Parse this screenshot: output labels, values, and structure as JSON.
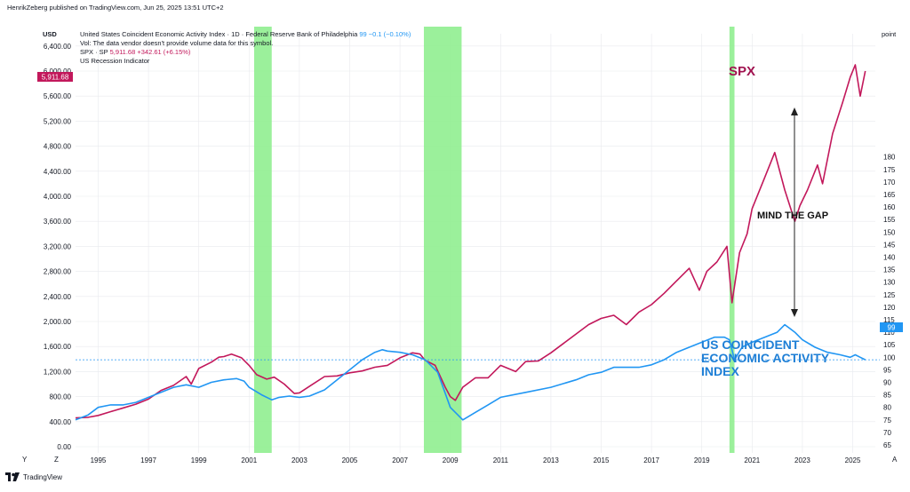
{
  "header": {
    "published": "HenrikZeberg published on TradingView.com, Jun 25, 2025 13:51 UTC+2",
    "left_unit": "USD",
    "right_unit": "point",
    "line1_title": "United States Coincident Economic Activity Index · 1D · Federal Reserve Bank of Philadelphia",
    "line1_value": "99",
    "line1_change": "−0.1 (−0.10%)",
    "line2": "Vol: The data vendor doesn't provide volume data for this symbol.",
    "line3_title": "SPX · SP",
    "line3_value": "5,911.68",
    "line3_change": "+342.61 (+6.15%)",
    "line4": "US Recession Indicator"
  },
  "footer": {
    "logo_text": "TradingView",
    "logo_icon": "tradingview-logo-icon",
    "corner_left": "Y",
    "corner_z": "Z",
    "corner_right": "A"
  },
  "annotations": {
    "spx_label": "SPX",
    "gap_label": "MIND THE GAP",
    "cea_label_line1": "US COINCIDENT",
    "cea_label_line2": "ECONOMIC ACTIVITY",
    "cea_label_line3": "INDEX"
  },
  "colors": {
    "spx": "#c2185b",
    "cea": "#2196f3",
    "recession": "#90ee90",
    "grid": "#e8eaee"
  },
  "chart_data": {
    "type": "line",
    "x_ticks": [
      "1995",
      "1997",
      "1999",
      "2001",
      "2003",
      "2005",
      "2007",
      "2009",
      "2011",
      "2013",
      "2015",
      "2017",
      "2019",
      "2021",
      "2023",
      "2025"
    ],
    "left_axis": {
      "label": "USD",
      "ticks": [
        "6,400.00",
        "6,000.00",
        "5,600.00",
        "5,200.00",
        "4,800.00",
        "4,400.00",
        "4,000.00",
        "3,600.00",
        "3,200.00",
        "2,800.00",
        "2,400.00",
        "2,000.00",
        "1,600.00",
        "1,200.00",
        "800.00",
        "400.00",
        "0.00"
      ],
      "ylim": [
        0,
        6400
      ]
    },
    "right_axis": {
      "label": "point",
      "ticks": [
        "180",
        "175",
        "170",
        "165",
        "160",
        "155",
        "150",
        "145",
        "140",
        "135",
        "130",
        "125",
        "120",
        "115",
        "110",
        "105",
        "100",
        "95",
        "90",
        "85",
        "80",
        "75",
        "70",
        "65"
      ],
      "ylim": [
        65,
        180
      ]
    },
    "current_values": {
      "spx": "5,911.68",
      "cea": "99"
    },
    "recessions": [
      {
        "start": 2001.2,
        "end": 2001.9
      },
      {
        "start": 2007.95,
        "end": 2009.45
      },
      {
        "start": 2020.1,
        "end": 2020.3
      }
    ],
    "series": [
      {
        "name": "SPX",
        "axis": "left",
        "x": [
          1994.1,
          1994.6,
          1995.0,
          1995.5,
          1996.0,
          1996.5,
          1997.0,
          1997.5,
          1998.0,
          1998.5,
          1998.7,
          1999.0,
          1999.5,
          1999.8,
          2000.0,
          2000.3,
          2000.7,
          2001.0,
          2001.3,
          2001.7,
          2002.0,
          2002.4,
          2002.8,
          2003.0,
          2003.5,
          2004.0,
          2004.5,
          2005.0,
          2005.5,
          2006.0,
          2006.5,
          2007.0,
          2007.5,
          2007.8,
          2008.0,
          2008.4,
          2008.8,
          2009.0,
          2009.2,
          2009.5,
          2010.0,
          2010.5,
          2011.0,
          2011.6,
          2012.0,
          2012.5,
          2013.0,
          2013.5,
          2014.0,
          2014.5,
          2015.0,
          2015.5,
          2016.0,
          2016.5,
          2017.0,
          2017.5,
          2018.0,
          2018.5,
          2018.9,
          2019.2,
          2019.6,
          2020.0,
          2020.2,
          2020.5,
          2020.8,
          2021.0,
          2021.5,
          2021.9,
          2022.3,
          2022.7,
          2022.9,
          2023.2,
          2023.6,
          2023.8,
          2024.2,
          2024.6,
          2024.9,
          2025.1,
          2025.3,
          2025.5
        ],
        "y": [
          460,
          470,
          500,
          560,
          620,
          680,
          760,
          900,
          980,
          1120,
          1000,
          1250,
          1350,
          1430,
          1440,
          1480,
          1420,
          1300,
          1150,
          1080,
          1110,
          1000,
          850,
          860,
          990,
          1120,
          1130,
          1180,
          1210,
          1270,
          1300,
          1420,
          1500,
          1480,
          1380,
          1300,
          950,
          800,
          740,
          950,
          1100,
          1100,
          1300,
          1200,
          1360,
          1370,
          1500,
          1650,
          1800,
          1950,
          2050,
          2100,
          1950,
          2150,
          2270,
          2450,
          2650,
          2850,
          2500,
          2800,
          2950,
          3200,
          2300,
          3100,
          3400,
          3800,
          4300,
          4700,
          4100,
          3600,
          3850,
          4100,
          4500,
          4200,
          5000,
          5500,
          5900,
          6100,
          5600,
          6000
        ]
      },
      {
        "name": "US COINCIDENT ECONOMIC ACTIVITY INDEX",
        "axis": "right",
        "x": [
          1994.1,
          1994.6,
          1995.0,
          1995.5,
          1996.0,
          1996.5,
          1997.0,
          1997.5,
          1998.0,
          1998.5,
          1999.0,
          1999.5,
          2000.0,
          2000.5,
          2000.8,
          2001.0,
          2001.5,
          2001.9,
          2002.2,
          2002.6,
          2003.0,
          2003.4,
          2004.0,
          2004.5,
          2005.0,
          2005.5,
          2006.0,
          2006.3,
          2006.5,
          2007.0,
          2007.5,
          2008.0,
          2008.5,
          2009.0,
          2009.5,
          2010.0,
          2010.5,
          2011.0,
          2012.0,
          2013.0,
          2014.0,
          2014.5,
          2015.0,
          2015.5,
          2016.0,
          2016.5,
          2017.0,
          2017.5,
          2018.0,
          2018.5,
          2019.0,
          2019.5,
          2019.9,
          2020.1,
          2020.3,
          2020.6,
          2021.0,
          2021.5,
          2022.0,
          2022.3,
          2022.7,
          2023.0,
          2023.5,
          2024.0,
          2024.5,
          2024.9,
          2025.1,
          2025.3,
          2025.5
        ],
        "y": [
          75,
          77,
          80,
          81,
          81,
          82,
          84,
          86,
          88,
          89,
          88,
          90,
          91,
          91.5,
          90.5,
          88,
          85,
          83,
          84,
          84.5,
          84,
          84.5,
          87,
          91,
          95,
          99,
          102,
          103,
          102.5,
          102,
          101,
          99,
          94,
          80,
          75,
          78,
          81,
          84,
          86,
          88,
          91,
          93,
          94,
          96,
          96,
          96,
          97,
          99,
          102,
          104,
          106,
          108,
          108,
          107,
          99,
          104,
          106,
          108,
          110,
          113,
          110,
          107,
          104,
          102,
          101,
          100,
          101,
          100,
          99
        ]
      }
    ]
  }
}
